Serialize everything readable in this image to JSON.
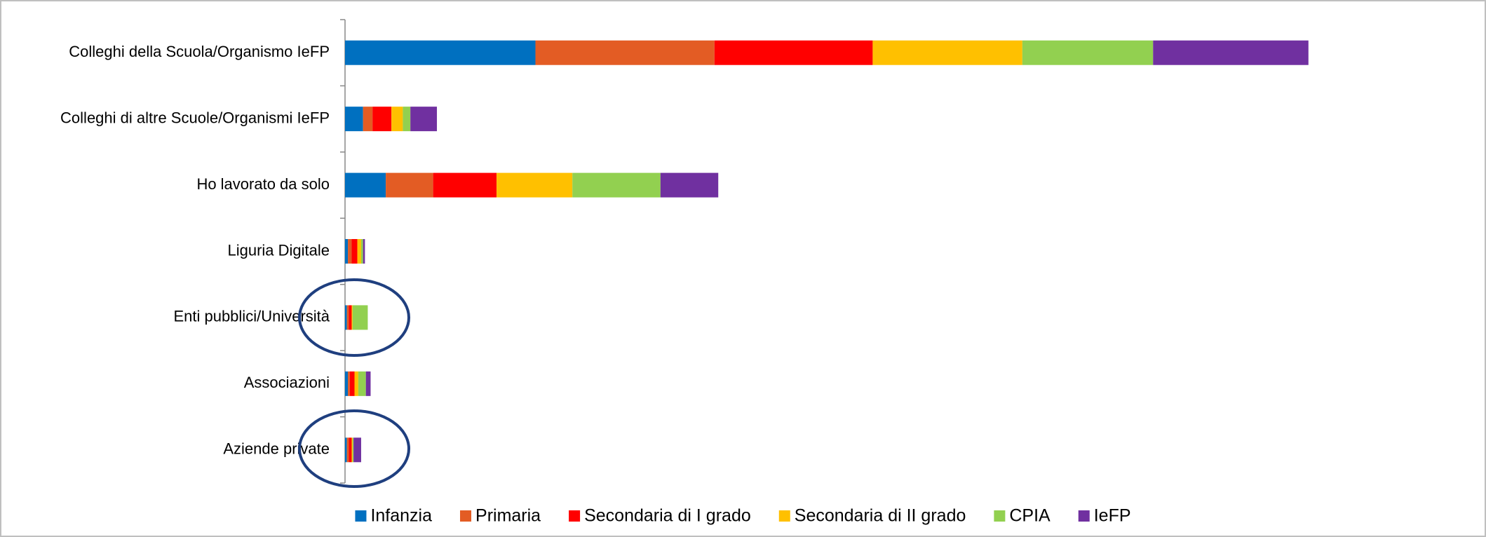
{
  "chart_data": {
    "type": "stacked-bar-horizontal",
    "categories": [
      "Colleghi della Scuola/Organismo IeFP",
      "Colleghi di altre Scuole/Organismi IeFP",
      "Ho lavorato da solo",
      "Liguria Digitale",
      "Enti pubblici/Università",
      "Associazioni",
      "Aziende private"
    ],
    "series": [
      {
        "name": "Infanzia",
        "color": "#0070c0",
        "values": [
          201,
          19,
          43,
          3,
          2,
          3,
          2
        ]
      },
      {
        "name": "Primaria",
        "color": "#e35c24",
        "values": [
          189,
          10,
          50,
          4,
          2,
          2,
          2
        ]
      },
      {
        "name": "Secondaria di I grado",
        "color": "#ff0000",
        "values": [
          167,
          20,
          67,
          6,
          3,
          5,
          3
        ]
      },
      {
        "name": "Secondaria di II grado",
        "color": "#ffc000",
        "values": [
          158,
          12,
          80,
          4,
          1,
          4,
          1
        ]
      },
      {
        "name": "CPIA",
        "color": "#92d050",
        "values": [
          138,
          8,
          93,
          2,
          16,
          8,
          1
        ]
      },
      {
        "name": "IeFP",
        "color": "#7030a0",
        "values": [
          164,
          28,
          61,
          2,
          0,
          5,
          8
        ]
      }
    ],
    "xlim": [
      0,
      1200
    ],
    "legend": "bottom"
  }
}
